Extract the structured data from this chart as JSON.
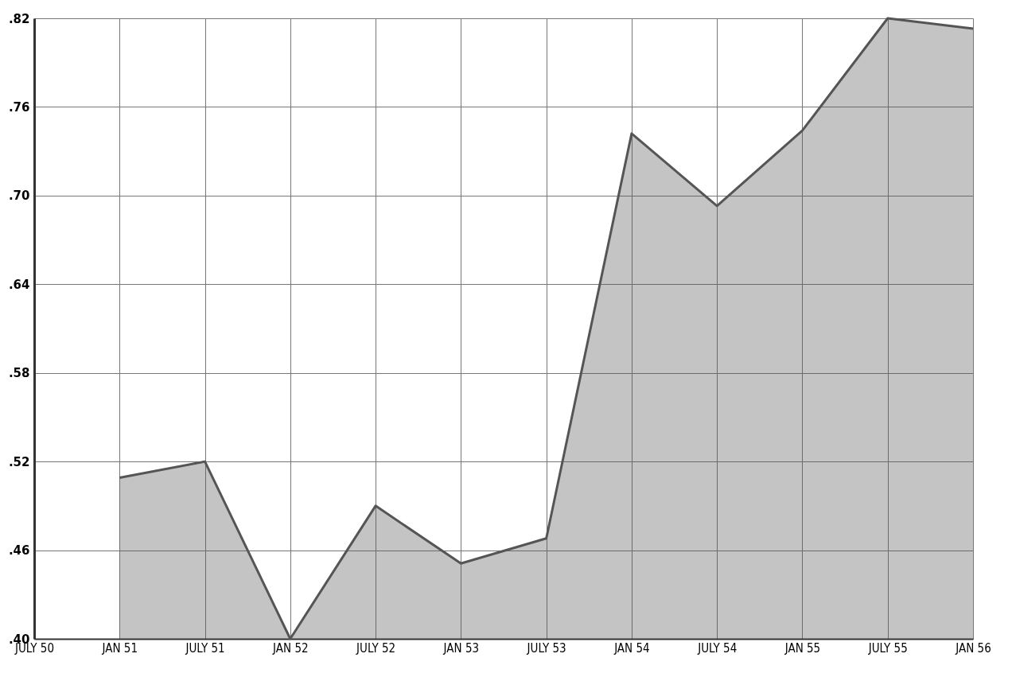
{
  "chart_data": {
    "type": "area",
    "categories": [
      "JULY 50",
      "JAN 51",
      "JULY 51",
      "JAN 52",
      "JULY 52",
      "JAN 53",
      "JULY 53",
      "JAN 54",
      "JULY 54",
      "JAN 55",
      "JULY 55",
      "JAN 56"
    ],
    "series": [
      {
        "color": "#555555",
        "values": [
          null,
          0.509,
          0.52,
          0.4,
          0.49,
          0.451,
          0.468,
          0.742,
          0.693,
          0.744,
          0.82,
          0.813
        ]
      }
    ],
    "ylim": [
      0.4,
      0.82
    ],
    "yticks": [
      {
        "value": 0.4,
        "label": ".40"
      },
      {
        "value": 0.46,
        "label": ".46"
      },
      {
        "value": 0.52,
        "label": ".52"
      },
      {
        "value": 0.58,
        "label": ".58"
      },
      {
        "value": 0.64,
        "label": ".64"
      },
      {
        "value": 0.7,
        "label": ".70"
      },
      {
        "value": 0.76,
        "label": ".76"
      },
      {
        "value": 0.82,
        "label": ".82"
      }
    ],
    "grid": true
  }
}
